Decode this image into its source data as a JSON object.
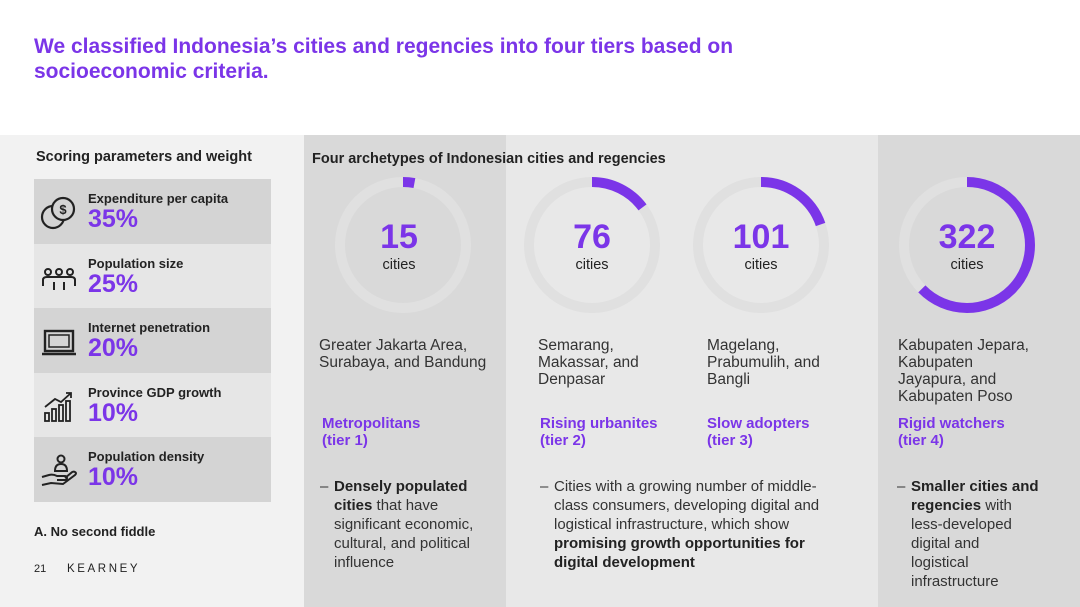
{
  "title": "We classified Indonesia’s cities and regencies into four tiers based on socioeconomic criteria.",
  "left": {
    "heading": "Scoring parameters and weight",
    "params": [
      {
        "label": "Expenditure per capita",
        "percent": "35%",
        "icon": "money-coins-icon"
      },
      {
        "label": "Population size",
        "percent": "25%",
        "icon": "people-group-icon"
      },
      {
        "label": "Internet penetration",
        "percent": "20%",
        "icon": "laptop-icon"
      },
      {
        "label": "Province GDP growth",
        "percent": "10%",
        "icon": "growth-bar-chart-icon"
      },
      {
        "label": "Population density",
        "percent": "10%",
        "icon": "person-in-hand-icon"
      }
    ],
    "footnote": "A. No second fiddle"
  },
  "footer": {
    "page": "21",
    "brand": "KEARNEY"
  },
  "right": {
    "heading": "Four archetypes of Indonesian cities and regencies",
    "tiers": [
      {
        "count": "15",
        "count_value": 15,
        "unit": "cities",
        "share": 0.029,
        "names": [
          "Greater Jakarta Area,",
          "Surabaya, and Bandung"
        ],
        "archetype": "Metropolitans",
        "tier": "(tier 1)"
      },
      {
        "count": "76",
        "count_value": 76,
        "unit": "cities",
        "share": 0.148,
        "names": [
          "Semarang,",
          "Makassar, and",
          "Denpasar"
        ],
        "archetype": "Rising urbanites",
        "tier": "(tier 2)"
      },
      {
        "count": "101",
        "count_value": 101,
        "unit": "cities",
        "share": 0.197,
        "names": [
          "Magelang,",
          "Prabumulih, and",
          "Bangli"
        ],
        "archetype": "Slow adopters",
        "tier": "(tier 3)"
      },
      {
        "count": "322",
        "count_value": 322,
        "unit": "cities",
        "share": 0.627,
        "names": [
          "Kabupaten Jepara,",
          "Kabupaten",
          "Jayapura, and",
          "Kabupaten Poso"
        ],
        "archetype": "Rigid watchers",
        "tier": "(tier 4)"
      }
    ],
    "descriptions": {
      "tier1": [
        "Densely populated",
        "cities",
        " that have",
        "significant economic,",
        "cultural, and political",
        "influence"
      ],
      "tier23": [
        "Cities with a growing number of middle-",
        "class consumers, developing digital and",
        "logistical infrastructure, which show",
        "promising growth opportunities for",
        "digital development"
      ],
      "tier4": [
        "Smaller cities and",
        "regencies",
        " with",
        "less-developed",
        "digital and",
        "logistical",
        "infrastructure"
      ]
    },
    "dash": "–"
  },
  "colors": {
    "accent": "#7b35e8",
    "ring_track": "#e0e0e0"
  }
}
